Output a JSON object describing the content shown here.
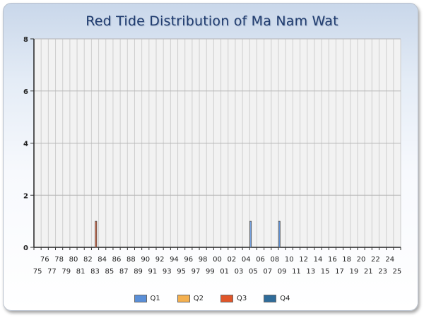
{
  "chart_data": {
    "type": "bar",
    "title": "Red Tide Distribution of Ma Nam Wat",
    "xlabel": "",
    "ylabel": "",
    "ylim": [
      0,
      8
    ],
    "yticks": [
      "0",
      "2",
      "4",
      "6",
      "8"
    ],
    "grid": true,
    "legend_position": "bottom",
    "categories": [
      "75",
      "76",
      "77",
      "78",
      "79",
      "80",
      "81",
      "82",
      "83",
      "84",
      "85",
      "86",
      "87",
      "88",
      "89",
      "90",
      "91",
      "92",
      "93",
      "94",
      "95",
      "96",
      "97",
      "98",
      "99",
      "00",
      "01",
      "02",
      "03",
      "04",
      "05",
      "06",
      "07",
      "08",
      "09",
      "10",
      "11",
      "12",
      "13",
      "14",
      "15",
      "16",
      "17",
      "18",
      "19",
      "20",
      "21",
      "22",
      "23",
      "24",
      "25"
    ],
    "series": [
      {
        "name": "Q1",
        "color": "#5a8fd8",
        "values": [
          0,
          0,
          0,
          0,
          0,
          0,
          0,
          0,
          0,
          0,
          0,
          0,
          0,
          0,
          0,
          0,
          0,
          0,
          0,
          0,
          0,
          0,
          0,
          0,
          0,
          0,
          0,
          0,
          0,
          0,
          1,
          0,
          0,
          0,
          1,
          0,
          0,
          0,
          0,
          0,
          0,
          0,
          0,
          0,
          0,
          0,
          0,
          0,
          0,
          0,
          0
        ]
      },
      {
        "name": "Q2",
        "color": "#f4b04f",
        "values": [
          0,
          0,
          0,
          0,
          0,
          0,
          0,
          0,
          0,
          0,
          0,
          0,
          0,
          0,
          0,
          0,
          0,
          0,
          0,
          0,
          0,
          0,
          0,
          0,
          0,
          0,
          0,
          0,
          0,
          0,
          0,
          0,
          0,
          0,
          0,
          0,
          0,
          0,
          0,
          0,
          0,
          0,
          0,
          0,
          0,
          0,
          0,
          0,
          0,
          0,
          0
        ]
      },
      {
        "name": "Q3",
        "color": "#e0562a",
        "values": [
          0,
          0,
          0,
          0,
          0,
          0,
          0,
          0,
          1,
          0,
          0,
          0,
          0,
          0,
          0,
          0,
          0,
          0,
          0,
          0,
          0,
          0,
          0,
          0,
          0,
          0,
          0,
          0,
          0,
          0,
          0,
          0,
          0,
          0,
          0,
          0,
          0,
          0,
          0,
          0,
          0,
          0,
          0,
          0,
          0,
          0,
          0,
          0,
          0,
          0,
          0
        ]
      },
      {
        "name": "Q4",
        "color": "#2f6c9a",
        "values": [
          0,
          0,
          0,
          0,
          0,
          0,
          0,
          0,
          0,
          0,
          0,
          0,
          0,
          0,
          0,
          0,
          0,
          0,
          0,
          0,
          0,
          0,
          0,
          0,
          0,
          0,
          0,
          0,
          0,
          0,
          0,
          0,
          0,
          0,
          0,
          0,
          0,
          0,
          0,
          0,
          0,
          0,
          0,
          0,
          0,
          0,
          0,
          0,
          0,
          0,
          0
        ]
      }
    ]
  }
}
